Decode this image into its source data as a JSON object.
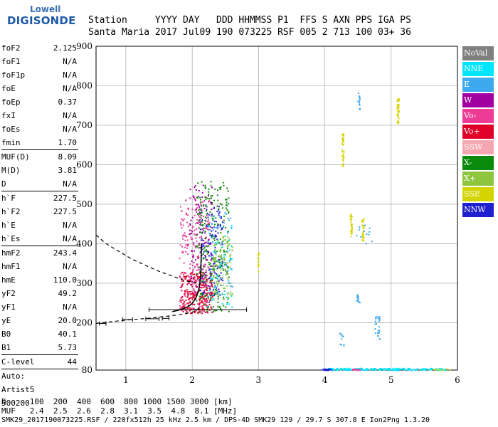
{
  "logo": {
    "line1": "Lowell",
    "line2": "DIGISONDE"
  },
  "header": {
    "row1": "Station     YYYY DAY   DDD HHMMSS P1  FFS S AXN PPS IGA PS",
    "row2": "Santa Maria 2017 Jul09 190 073225 RSF 005 2 713 100 03+ 36"
  },
  "params": [
    {
      "k": "foF2",
      "v": "2.125"
    },
    {
      "k": "foF1",
      "v": "N/A"
    },
    {
      "k": "foF1p",
      "v": "N/A"
    },
    {
      "k": "foE",
      "v": "N/A"
    },
    {
      "k": "foEp",
      "v": "0.37"
    },
    {
      "k": "fxI",
      "v": "N/A"
    },
    {
      "k": "foEs",
      "v": "N/A"
    },
    {
      "k": "fmin",
      "v": "1.70"
    },
    {
      "sep": true
    },
    {
      "k": "MUF(D)",
      "v": "8.09"
    },
    {
      "k": "M(D)",
      "v": "3.81"
    },
    {
      "k": "D",
      "v": "N/A"
    },
    {
      "sep": true
    },
    {
      "k": "h`F",
      "v": "227.5"
    },
    {
      "k": "h`F2",
      "v": "227.5"
    },
    {
      "k": "h`E",
      "v": "N/A"
    },
    {
      "k": "h`Es",
      "v": "N/A"
    },
    {
      "sep": true
    },
    {
      "k": "hmF2",
      "v": "243.4"
    },
    {
      "k": "hmF1",
      "v": "N/A"
    },
    {
      "k": "hmE",
      "v": "110.0"
    },
    {
      "k": "yF2",
      "v": "49.2"
    },
    {
      "k": "yF1",
      "v": "N/A"
    },
    {
      "k": "yE",
      "v": "20.0"
    },
    {
      "k": "B0",
      "v": "40.1"
    },
    {
      "k": "B1",
      "v": "5.73"
    },
    {
      "sep": true
    },
    {
      "k": "C-level",
      "v": "44"
    },
    {
      "sep": true
    },
    {
      "k": "Auto:",
      "v": ""
    },
    {
      "k": "Artist5",
      "v": ""
    },
    {
      "k": "500200",
      "v": ""
    }
  ],
  "footer": {
    "d_row": "D     100  200  400  600  800 1000 1500 3000 [km]",
    "muf_row": "MUF   2.4  2.5  2.6  2.8  3.1  3.5  4.8  8.1 [MHz]",
    "file_row": "SMK29_2017190073225.RSF / 220fx512h 25 kHz 2.5 km / DPS-4D SMK29 129 / 29.7 S 307.8 E Ion2Png 1.3.20"
  },
  "legend": [
    {
      "label": "NoVal",
      "color": "#808080"
    },
    {
      "label": "NNE",
      "color": "#00e5ff"
    },
    {
      "label": "E",
      "color": "#3fa9ef"
    },
    {
      "label": "W",
      "color": "#a000a0"
    },
    {
      "label": "Vo-",
      "color": "#ee3c96"
    },
    {
      "label": "Vo+",
      "color": "#e0002a"
    },
    {
      "label": "SSW",
      "color": "#f4a7b0"
    },
    {
      "label": "X-",
      "color": "#0a8a0a"
    },
    {
      "label": "X+",
      "color": "#8ec63f"
    },
    {
      "label": "SSE",
      "color": "#d4d400"
    },
    {
      "label": "NNW",
      "color": "#2020d0"
    }
  ],
  "chart_data": {
    "type": "scatter",
    "xlim": [
      0.55,
      6.0
    ],
    "ylim": [
      80,
      900
    ],
    "x_ticks": [
      1,
      2,
      3,
      4,
      5,
      6
    ],
    "y_ticks": [
      80,
      200,
      300,
      400,
      500,
      600,
      700,
      800,
      900
    ],
    "grid": true,
    "legend_position": "right",
    "f2_trace": [
      [
        1.7,
        228
      ],
      [
        1.78,
        231
      ],
      [
        1.86,
        235
      ],
      [
        1.93,
        240
      ],
      [
        1.99,
        247
      ],
      [
        2.03,
        256
      ],
      [
        2.07,
        268
      ],
      [
        2.1,
        285
      ],
      [
        2.12,
        305
      ],
      [
        2.13,
        330
      ],
      [
        2.135,
        360
      ],
      [
        2.14,
        400
      ]
    ],
    "model_upper": [
      [
        0.55,
        422
      ],
      [
        0.7,
        400
      ],
      [
        0.9,
        380
      ],
      [
        1.1,
        360
      ],
      [
        1.3,
        345
      ],
      [
        1.5,
        330
      ],
      [
        1.7,
        318
      ],
      [
        1.9,
        306
      ],
      [
        2.1,
        300
      ]
    ],
    "model_lower": [
      [
        0.55,
        198
      ],
      [
        0.8,
        203
      ],
      [
        1.1,
        208
      ],
      [
        1.4,
        212
      ],
      [
        1.6,
        216
      ],
      [
        1.8,
        220
      ],
      [
        2.0,
        226
      ],
      [
        2.08,
        234
      ],
      [
        2.12,
        242
      ]
    ],
    "error_bars": [
      {
        "y": 198,
        "x1": 0.6,
        "x2": 0.7
      },
      {
        "y": 208,
        "x1": 0.95,
        "x2": 1.1
      },
      {
        "y": 210,
        "x1": 1.3,
        "x2": 1.5
      },
      {
        "y": 211,
        "x1": 1.55,
        "x2": 1.65
      },
      {
        "y": 233,
        "x1": 1.35,
        "x2": 2.82
      }
    ],
    "clusters": [
      {
        "color": "#e0002a",
        "x": [
          1.82,
          2.3
        ],
        "y": [
          225,
          330
        ],
        "n": 260
      },
      {
        "color": "#ee3c96",
        "x": [
          1.8,
          2.25
        ],
        "y": [
          225,
          520
        ],
        "n": 220
      },
      {
        "color": "#a000a0",
        "x": [
          1.95,
          2.3
        ],
        "y": [
          280,
          560
        ],
        "n": 110
      },
      {
        "color": "#2020d0",
        "x": [
          2.1,
          2.45
        ],
        "y": [
          270,
          500
        ],
        "n": 140
      },
      {
        "color": "#0a8a0a",
        "x": [
          2.05,
          2.55
        ],
        "y": [
          228,
          560
        ],
        "n": 230
      },
      {
        "color": "#8ec63f",
        "x": [
          2.3,
          2.6
        ],
        "y": [
          260,
          420
        ],
        "n": 110
      },
      {
        "color": "#3fa9ef",
        "x": [
          2.25,
          2.6
        ],
        "y": [
          270,
          480
        ],
        "n": 60
      },
      {
        "color": "#00e5ff",
        "x": [
          2.2,
          2.6
        ],
        "y": [
          240,
          450
        ],
        "n": 40
      },
      {
        "color": "#d4d400",
        "x": [
          4.25,
          4.28
        ],
        "y": [
          590,
          680
        ],
        "n": 40
      },
      {
        "color": "#d4d400",
        "x": [
          4.37,
          4.4
        ],
        "y": [
          420,
          480
        ],
        "n": 30
      },
      {
        "color": "#d4d400",
        "x": [
          4.55,
          4.58
        ],
        "y": [
          405,
          470
        ],
        "n": 30
      },
      {
        "color": "#d4d400",
        "x": [
          5.08,
          5.11
        ],
        "y": [
          700,
          770
        ],
        "n": 30
      },
      {
        "color": "#d4d400",
        "x": [
          2.98,
          3.0
        ],
        "y": [
          330,
          380
        ],
        "n": 15
      },
      {
        "color": "#3fa9ef",
        "x": [
          4.49,
          4.52
        ],
        "y": [
          740,
          785
        ],
        "n": 15
      },
      {
        "color": "#3fa9ef",
        "x": [
          4.47,
          4.52
        ],
        "y": [
          250,
          275
        ],
        "n": 14
      },
      {
        "color": "#3fa9ef",
        "x": [
          4.75,
          4.82
        ],
        "y": [
          160,
          220
        ],
        "n": 25
      },
      {
        "color": "#3fa9ef",
        "x": [
          4.2,
          4.28
        ],
        "y": [
          140,
          175
        ],
        "n": 12
      },
      {
        "color": "#3fa9ef",
        "x": [
          4.45,
          4.7
        ],
        "y": [
          400,
          450
        ],
        "n": 12
      },
      {
        "color": "#00e5ff",
        "x": [
          4.0,
          5.85
        ],
        "y": [
          81,
          86
        ],
        "n": 200
      },
      {
        "color": "#2020d0",
        "x": [
          3.95,
          4.1
        ],
        "y": [
          81,
          84
        ],
        "n": 25
      },
      {
        "color": "#ee3c96",
        "x": [
          4.4,
          4.52
        ],
        "y": [
          81,
          84
        ],
        "n": 15
      },
      {
        "color": "#d4d400",
        "x": [
          5.6,
          5.95
        ],
        "y": [
          81,
          84
        ],
        "n": 8
      }
    ]
  }
}
